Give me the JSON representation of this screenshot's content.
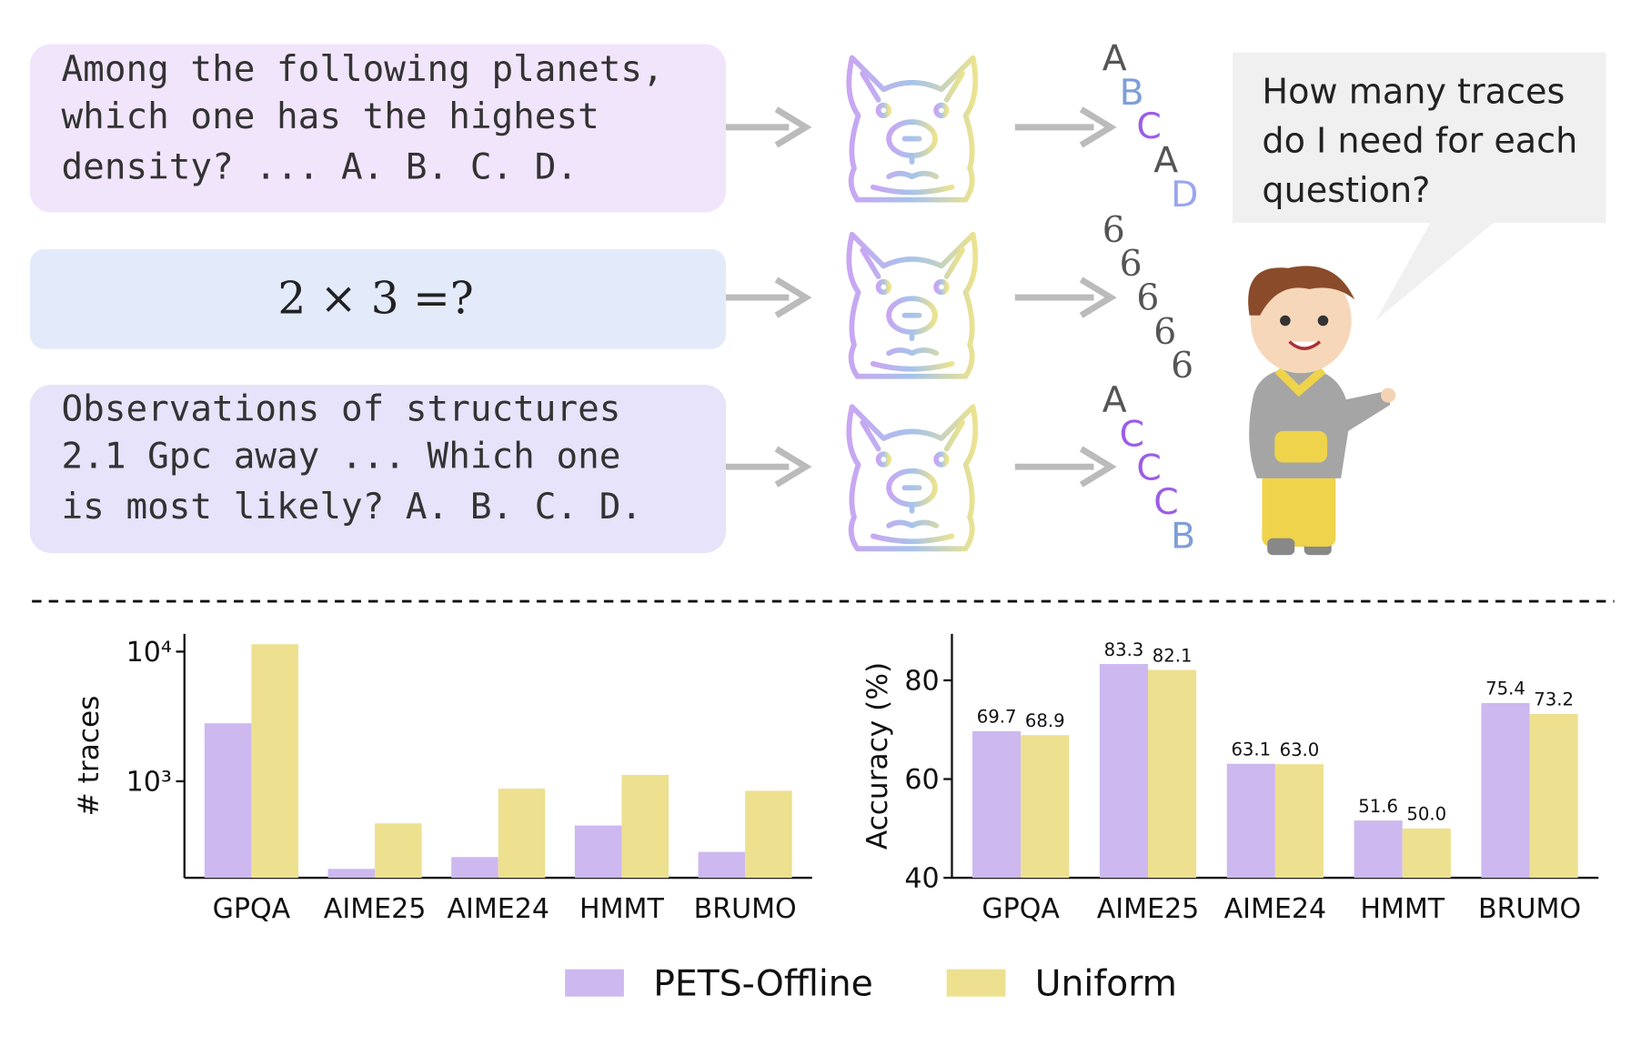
{
  "diagram": {
    "questions": [
      [
        "Among the following planets,",
        "which one has the highest",
        "density? ... A. B. C. D."
      ],
      [
        "2 × 3 =?"
      ],
      [
        "Observations of structures",
        "2.1 Gpc away ... Which one",
        "is most likely? A. B. C. D."
      ]
    ],
    "answers": [
      [
        {
          "text": "A",
          "color": "#555555"
        },
        {
          "text": "B",
          "color": "#7e9fd6"
        },
        {
          "text": "C",
          "color": "#9b5de5"
        },
        {
          "text": "A",
          "color": "#555555"
        },
        {
          "text": "D",
          "color": "#9aa6ee"
        }
      ],
      [
        {
          "text": "6",
          "color": "#555555"
        },
        {
          "text": "6",
          "color": "#555555"
        },
        {
          "text": "6",
          "color": "#555555"
        },
        {
          "text": "6",
          "color": "#555555"
        },
        {
          "text": "6",
          "color": "#555555"
        }
      ],
      [
        {
          "text": "A",
          "color": "#555555"
        },
        {
          "text": "C",
          "color": "#9b5de5"
        },
        {
          "text": "C",
          "color": "#9b5de5"
        },
        {
          "text": "C",
          "color": "#9b5de5"
        },
        {
          "text": "B",
          "color": "#7e9fd6"
        }
      ]
    ],
    "bubble": [
      "How many traces",
      "do I need for each",
      "question?"
    ]
  },
  "chart_data": [
    {
      "type": "bar",
      "ylabel": "# traces",
      "log": true,
      "categories": [
        "GPQA",
        "AIME25",
        "AIME24",
        "HMMT",
        "BRUMO"
      ],
      "series": [
        {
          "name": "PETS-Offline",
          "color": "#cdb8ef",
          "values": [
            2800,
            211,
            260,
            456,
            285
          ]
        },
        {
          "name": "Uniform",
          "color": "#ede08f",
          "values": [
            11400,
            473,
            877,
            1120,
            845
          ]
        }
      ],
      "ylim": [
        180,
        13700
      ],
      "yticks": [
        {
          "value": 1000,
          "label": "10³"
        },
        {
          "value": 10000,
          "label": "10⁴"
        }
      ]
    },
    {
      "type": "bar",
      "ylabel": "Accuracy (%)",
      "categories": [
        "GPQA",
        "AIME25",
        "AIME24",
        "HMMT",
        "BRUMO"
      ],
      "series": [
        {
          "color": "#cdb8ef",
          "values": [
            69.7,
            83.3,
            63.1,
            51.6,
            75.4
          ],
          "value_labels": [
            "69.7",
            "83.3",
            "63.1",
            "51.6",
            "75.4"
          ]
        },
        {
          "color": "#ede08f",
          "values": [
            68.9,
            82.1,
            63,
            50,
            73.2
          ],
          "value_labels": [
            "68.9",
            "82.1",
            "63.0",
            "50.0",
            "73.2"
          ]
        }
      ],
      "ylim": [
        40,
        89.4
      ],
      "yticks": [
        40,
        60,
        80
      ]
    }
  ]
}
